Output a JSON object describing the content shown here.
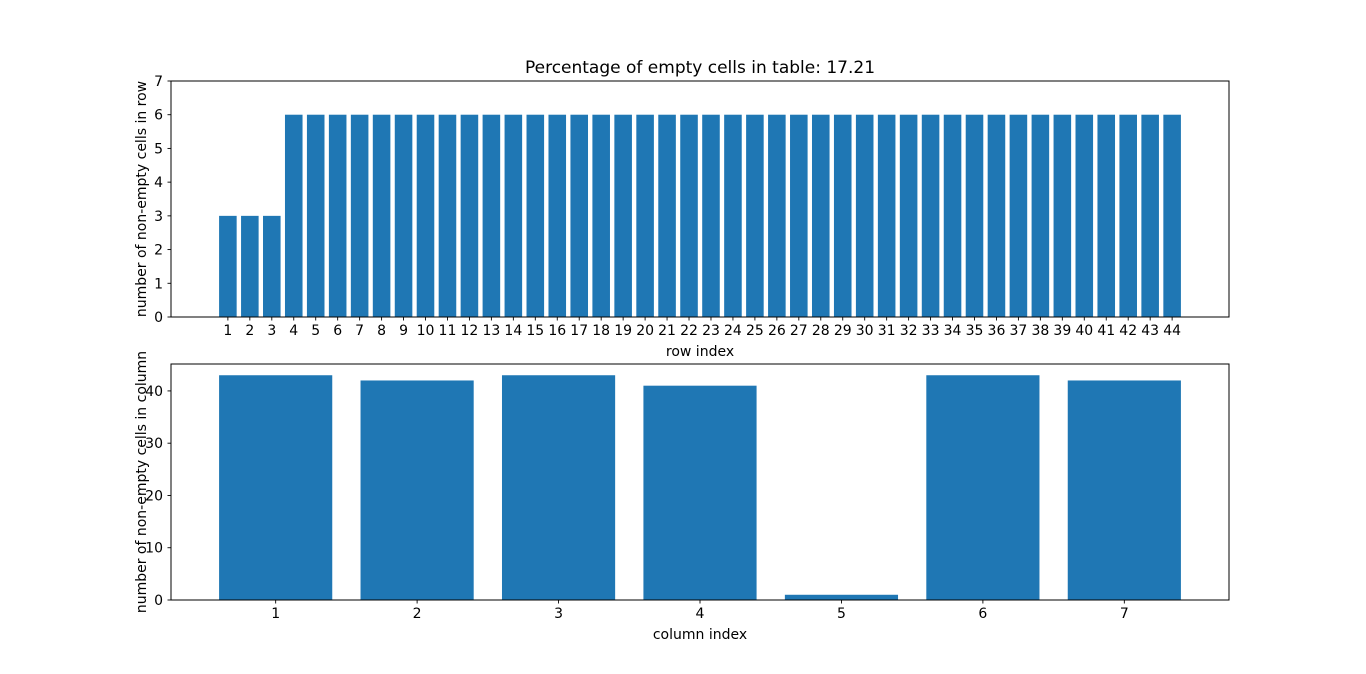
{
  "figure": {
    "background": "#ffffff"
  },
  "chart_data": [
    {
      "type": "bar",
      "title": "Percentage of empty cells in table: 17.21",
      "xlabel": "row index",
      "ylabel": "number of non-empty cells in row",
      "categories": [
        1,
        2,
        3,
        4,
        5,
        6,
        7,
        8,
        9,
        10,
        11,
        12,
        13,
        14,
        15,
        16,
        17,
        18,
        19,
        20,
        21,
        22,
        23,
        24,
        25,
        26,
        27,
        28,
        29,
        30,
        31,
        32,
        33,
        34,
        35,
        36,
        37,
        38,
        39,
        40,
        41,
        42,
        43,
        44
      ],
      "values": [
        3,
        3,
        3,
        6,
        6,
        6,
        6,
        6,
        6,
        6,
        6,
        6,
        6,
        6,
        6,
        6,
        6,
        6,
        6,
        6,
        6,
        6,
        6,
        6,
        6,
        6,
        6,
        6,
        6,
        6,
        6,
        6,
        6,
        6,
        6,
        6,
        6,
        6,
        6,
        6,
        6,
        6,
        6,
        6
      ],
      "ylim": [
        0,
        7
      ],
      "yticks": [
        0,
        1,
        2,
        3,
        4,
        5,
        6,
        7
      ],
      "bar_color": "#1f77b4",
      "bar_width": 0.8,
      "grid": false,
      "legend": null
    },
    {
      "type": "bar",
      "title": "",
      "xlabel": "column index",
      "ylabel": "number of non-empty cells in column",
      "categories": [
        1,
        2,
        3,
        4,
        5,
        6,
        7
      ],
      "values": [
        43,
        42,
        43,
        41,
        1,
        43,
        42
      ],
      "ylim": [
        0,
        45.15
      ],
      "yticks": [
        0,
        10,
        20,
        30,
        40
      ],
      "bar_color": "#1f77b4",
      "bar_width": 0.8,
      "grid": false,
      "legend": null
    }
  ]
}
